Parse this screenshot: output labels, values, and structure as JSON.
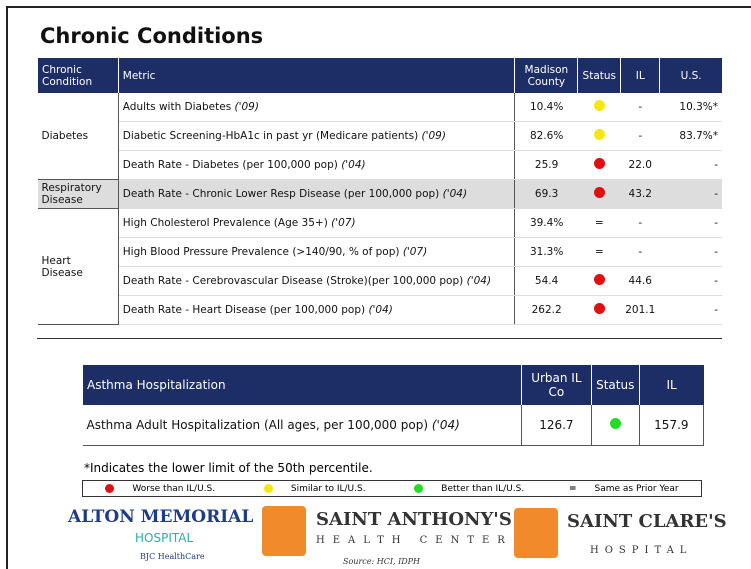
{
  "title": "Chronic Conditions",
  "main_table": {
    "headers": [
      "Chronic Condition",
      "Metric",
      "Madison County",
      "Status",
      "IL",
      "U.S."
    ],
    "groups": [
      {
        "condition": "Diabetes",
        "rows": [
          {
            "metric": "Adults with Diabetes",
            "year": "('09)",
            "madison": "10.4%",
            "status_color": "#f5e614",
            "il": "-",
            "us": "10.3%*"
          },
          {
            "metric": "Diabetic Screening-HbA1c in past yr (Medicare patients)",
            "year": "('09)",
            "madison": "82.6%",
            "status_color": "#f5e614",
            "il": "-",
            "us": "83.7%*"
          },
          {
            "metric": "Death Rate - Diabetes (per 100,000 pop)",
            "year": "('04)",
            "madison": "25.9",
            "status_color": "#e01010",
            "il": "22.0",
            "us": "-"
          }
        ]
      },
      {
        "condition": "Respiratory Disease",
        "shaded": true,
        "rows": [
          {
            "metric": "Death Rate - Chronic Lower Resp Disease (per 100,000 pop)",
            "year": "('04)",
            "madison": "69.3",
            "status_color": "#e01010",
            "il": "43.2",
            "us": "-"
          }
        ]
      },
      {
        "condition": "Heart Disease",
        "rows": [
          {
            "metric": "High Cholesterol Prevalence (Age 35+)",
            "year": "('07)",
            "madison": "39.4%",
            "status": "=",
            "il": "-",
            "us": "-"
          },
          {
            "metric": "High Blood Pressure Prevalence (>140/90, % of pop)",
            "year": "('07)",
            "madison": "31.3%",
            "status": "=",
            "il": "-",
            "us": "-"
          },
          {
            "metric": "Death Rate - Cerebrovascular Disease (Stroke)(per 100,000 pop)",
            "year": "('04)",
            "madison": "54.4",
            "status_color": "#e01010",
            "il": "44.6",
            "us": "-"
          },
          {
            "metric": "Death Rate - Heart Disease (per 100,000 pop)",
            "year": "('04)",
            "madison": "262.2",
            "status_color": "#e01010",
            "il": "201.1",
            "us": "-"
          }
        ]
      }
    ]
  },
  "asthma_table": {
    "headers": [
      "Asthma Hospitalization",
      "Urban IL Co",
      "Status",
      "IL"
    ],
    "row": {
      "metric": "Asthma Adult Hospitalization (All ages, per 100,000 pop)",
      "year": "('04)",
      "urban": "126.7",
      "status_color": "#22dd22",
      "il": "157.9"
    }
  },
  "footnote": "*Indicates the lower limit of the 50th percentile.",
  "legend": [
    {
      "color": "#e01010",
      "label": "Worse than IL/U.S."
    },
    {
      "color": "#f5e614",
      "label": "Similar to IL/U.S."
    },
    {
      "color": "#22dd22",
      "label": "Better than IL/U.S."
    },
    {
      "symbol": "=",
      "label": "Same as Prior Year"
    }
  ],
  "logos": {
    "alton": "ALTON MEMORIAL",
    "alton_sub": "HOSPITAL",
    "bjc": "BJC HealthCare",
    "anthony": "SAINT ANTHONY'S",
    "anthony_sub": "HEALTH CENTER",
    "clare": "SAINT CLARE'S",
    "clare_sub": "HOSPITAL",
    "source": "Source: HCI, IDPH"
  }
}
